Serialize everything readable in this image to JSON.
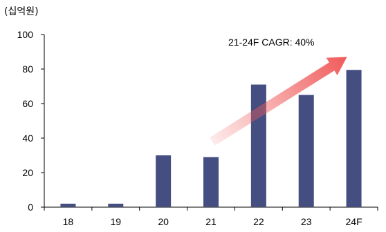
{
  "chart_data": {
    "type": "bar",
    "unit_label": "(십억원)",
    "categories": [
      "18",
      "19",
      "20",
      "21",
      "22",
      "23",
      "24F"
    ],
    "values": [
      2,
      2,
      30,
      29,
      71,
      65,
      79.5
    ],
    "ylim": [
      0,
      100
    ],
    "yticks": [
      0,
      20,
      40,
      60,
      80,
      100
    ],
    "grid": false,
    "bar_color": "#444E80",
    "annotation": {
      "text": "21-24F CAGR: 40%",
      "arrow_from_category": "21",
      "arrow_to_category": "24F",
      "arrow_color": "#F05A5A"
    }
  }
}
